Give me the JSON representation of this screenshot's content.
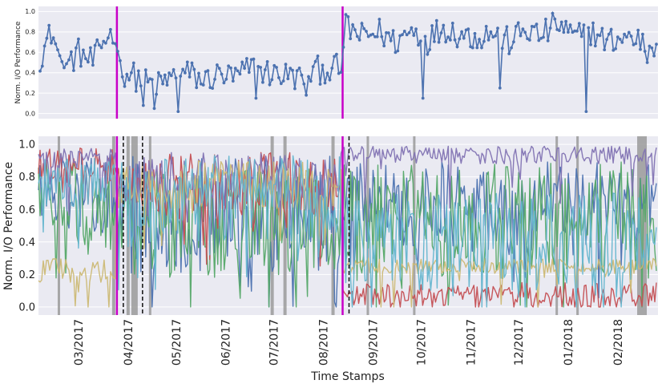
{
  "chart_data": [
    {
      "type": "line",
      "panel": "top",
      "ylabel": "Norm. I/O Performance",
      "ylim": [
        -0.05,
        1.05
      ],
      "yticks": [
        "0.0",
        "0.2",
        "0.4",
        "0.6",
        "0.8",
        "1.0"
      ],
      "x_range": [
        "2017-02-04",
        "2018-02-26"
      ],
      "grid": true,
      "change_points": [
        "2017-03-25",
        "2017-08-13"
      ],
      "line_color": "#4c72b0",
      "marker_color": "#4c72b0",
      "change_point_color": "#c800c8",
      "series": [
        {
          "x": [
            "2017-02-05",
            "2017-02-12",
            "2017-02-20",
            "2017-03-01",
            "2017-03-10",
            "2017-03-18",
            "2017-03-24",
            "2017-03-27",
            "2017-04-03",
            "2017-04-12",
            "2017-04-20",
            "2017-04-28",
            "2017-05-08",
            "2017-05-18",
            "2017-05-28",
            "2017-06-07",
            "2017-06-17",
            "2017-06-27",
            "2017-07-07",
            "2017-07-17",
            "2017-07-27",
            "2017-08-05",
            "2017-08-12",
            "2017-08-15",
            "2017-08-25",
            "2017-09-05",
            "2017-09-15",
            "2017-09-25",
            "2017-10-05",
            "2017-10-15",
            "2017-10-25",
            "2017-11-05",
            "2017-11-15",
            "2017-11-25",
            "2017-12-05",
            "2017-12-15",
            "2017-12-25",
            "2018-01-05",
            "2018-01-15",
            "2018-01-25",
            "2018-02-05",
            "2018-02-15",
            "2018-02-25"
          ],
          "y": [
            0.55,
            0.8,
            0.45,
            0.6,
            0.5,
            0.75,
            0.8,
            0.42,
            0.38,
            0.3,
            0.28,
            0.35,
            0.4,
            0.32,
            0.38,
            0.35,
            0.45,
            0.4,
            0.38,
            0.35,
            0.42,
            0.44,
            0.45,
            0.85,
            0.75,
            0.8,
            0.7,
            0.82,
            0.72,
            0.85,
            0.78,
            0.75,
            0.8,
            0.7,
            0.82,
            0.76,
            0.88,
            0.74,
            0.8,
            0.7,
            0.75,
            0.72,
            0.68
          ],
          "dips": [
            {
              "x": "2017-04-10",
              "y": 0.08
            },
            {
              "x": "2017-04-18",
              "y": 0.05
            },
            {
              "x": "2017-05-02",
              "y": 0.02
            },
            {
              "x": "2017-06-20",
              "y": 0.15
            },
            {
              "x": "2017-07-22",
              "y": 0.18
            },
            {
              "x": "2017-10-02",
              "y": 0.15
            },
            {
              "x": "2017-11-20",
              "y": 0.25
            },
            {
              "x": "2018-01-12",
              "y": 0.02
            },
            {
              "x": "2018-02-20",
              "y": 0.5
            }
          ]
        }
      ]
    },
    {
      "type": "line",
      "panel": "bottom",
      "xlabel": "Time Stamps",
      "ylabel": "Norm. I/O Performance",
      "ylim": [
        -0.05,
        1.05
      ],
      "yticks": [
        "0.0",
        "0.2",
        "0.4",
        "0.6",
        "0.8",
        "1.0"
      ],
      "x_range": [
        "2017-02-04",
        "2018-02-26"
      ],
      "xticks": [
        "03/2017",
        "04/2017",
        "05/2017",
        "06/2017",
        "07/2017",
        "08/2017",
        "09/2017",
        "10/2017",
        "11/2017",
        "12/2017",
        "01/2018",
        "02/2018"
      ],
      "grid": true,
      "change_points": [
        "2017-03-25",
        "2017-08-13"
      ],
      "dashed_lines": [
        "2017-03-29",
        "2017-04-10",
        "2017-08-17"
      ],
      "shaded_bands": [
        {
          "start": "2017-02-16",
          "end": "2017-02-17"
        },
        {
          "start": "2017-03-22",
          "end": "2017-03-24"
        },
        {
          "start": "2017-03-31",
          "end": "2017-04-02"
        },
        {
          "start": "2017-04-03",
          "end": "2017-04-07"
        },
        {
          "start": "2017-04-14",
          "end": "2017-04-15"
        },
        {
          "start": "2017-06-29",
          "end": "2017-07-01"
        },
        {
          "start": "2017-07-07",
          "end": "2017-07-09"
        },
        {
          "start": "2017-08-06",
          "end": "2017-08-08"
        },
        {
          "start": "2017-08-28",
          "end": "2017-08-29"
        },
        {
          "start": "2017-09-26",
          "end": "2017-09-27"
        },
        {
          "start": "2017-12-24",
          "end": "2017-12-25"
        },
        {
          "start": "2018-01-06",
          "end": "2018-01-07"
        },
        {
          "start": "2018-02-13",
          "end": "2018-02-19"
        }
      ],
      "series": [
        {
          "color": "#4c72b0",
          "segments": [
            {
              "start": "2017-02-04",
              "end": "2017-03-25",
              "range": [
                0.45,
                0.95
              ]
            },
            {
              "start": "2017-03-25",
              "end": "2017-08-13",
              "range": [
                0.2,
                0.95
              ]
            },
            {
              "start": "2017-08-13",
              "end": "2018-02-26",
              "range": [
                0.35,
                0.9
              ]
            }
          ]
        },
        {
          "color": "#55a868",
          "segments": [
            {
              "start": "2017-02-04",
              "end": "2017-03-25",
              "range": [
                0.35,
                0.9
              ]
            },
            {
              "start": "2017-03-25",
              "end": "2017-08-13",
              "range": [
                0.15,
                0.85
              ]
            },
            {
              "start": "2017-08-13",
              "end": "2018-02-26",
              "range": [
                0.2,
                0.9
              ]
            }
          ]
        },
        {
          "color": "#c44e52",
          "segments": [
            {
              "start": "2017-02-04",
              "end": "2017-03-25",
              "range": [
                0.75,
                0.98
              ]
            },
            {
              "start": "2017-03-25",
              "end": "2017-08-13",
              "range": [
                0.55,
                0.95
              ]
            },
            {
              "start": "2017-08-13",
              "end": "2018-02-26",
              "range": [
                0.0,
                0.15
              ]
            }
          ]
        },
        {
          "color": "#8172b2",
          "segments": [
            {
              "start": "2017-02-04",
              "end": "2017-03-25",
              "range": [
                0.85,
                0.98
              ]
            },
            {
              "start": "2017-03-25",
              "end": "2017-08-13",
              "range": [
                0.65,
                0.95
              ]
            },
            {
              "start": "2017-08-13",
              "end": "2018-02-26",
              "range": [
                0.88,
                0.99
              ]
            }
          ]
        },
        {
          "color": "#ccb974",
          "segments": [
            {
              "start": "2017-02-04",
              "end": "2017-03-25",
              "range": [
                0.15,
                0.3
              ]
            },
            {
              "start": "2017-03-25",
              "end": "2017-08-13",
              "range": [
                0.6,
                0.9
              ]
            },
            {
              "start": "2017-08-13",
              "end": "2018-02-26",
              "range": [
                0.2,
                0.3
              ]
            }
          ]
        },
        {
          "color": "#64b5cd",
          "segments": [
            {
              "start": "2017-02-04",
              "end": "2017-03-25",
              "range": [
                0.6,
                0.95
              ]
            },
            {
              "start": "2017-03-25",
              "end": "2017-08-13",
              "range": [
                0.4,
                0.95
              ]
            },
            {
              "start": "2017-08-13",
              "end": "2018-02-26",
              "range": [
                0.1,
                0.7
              ]
            }
          ]
        }
      ]
    }
  ]
}
